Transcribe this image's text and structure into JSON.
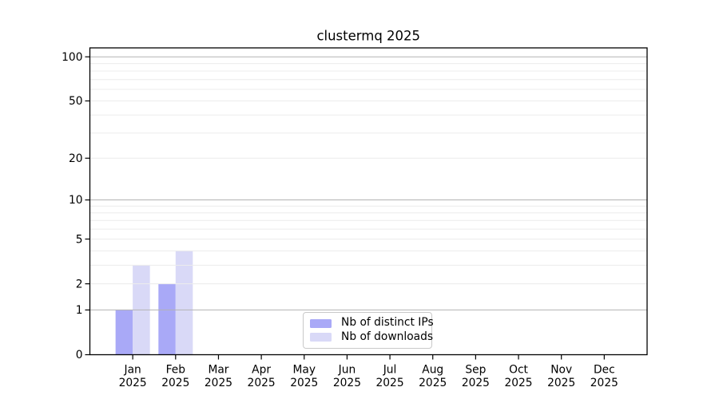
{
  "figure": {
    "background": "#ffffff"
  },
  "chart_data": {
    "type": "bar",
    "title": "clustermq 2025",
    "categories": [
      "Jan",
      "Feb",
      "Mar",
      "Apr",
      "May",
      "Jun",
      "Jul",
      "Aug",
      "Sep",
      "Oct",
      "Nov",
      "Dec"
    ],
    "x_tick_year": "2025",
    "series": [
      {
        "name": "Nb of distinct IPs",
        "color": "#a9a9f7",
        "values": [
          1,
          2,
          0,
          0,
          0,
          0,
          0,
          0,
          0,
          0,
          0,
          0
        ]
      },
      {
        "name": "Nb of downloads",
        "color": "#d9d9f7",
        "values": [
          3,
          4,
          0,
          0,
          0,
          0,
          0,
          0,
          0,
          0,
          0,
          0
        ]
      }
    ],
    "xlabel": "",
    "ylabel": "",
    "yscale": "log1p",
    "ylim": [
      0,
      115
    ],
    "ytick_values": [
      0,
      1,
      2,
      5,
      10,
      20,
      50,
      100
    ],
    "ytick_labels": [
      "0",
      "1",
      "2",
      "5",
      "10",
      "20",
      "50",
      "100"
    ],
    "major_gridlines": [
      1,
      10,
      100
    ],
    "minor_gridlines": [
      2,
      3,
      4,
      5,
      6,
      7,
      8,
      9,
      20,
      30,
      40,
      50,
      60,
      70,
      80,
      90
    ],
    "grid": true,
    "legend_position": "lower center",
    "colors": {
      "major_grid": "#b3b3b3",
      "minor_grid": "#ececec",
      "axis": "#000000",
      "text": "#000000",
      "legend_border": "#c9c9c9",
      "legend_background": "#ffffff"
    }
  }
}
